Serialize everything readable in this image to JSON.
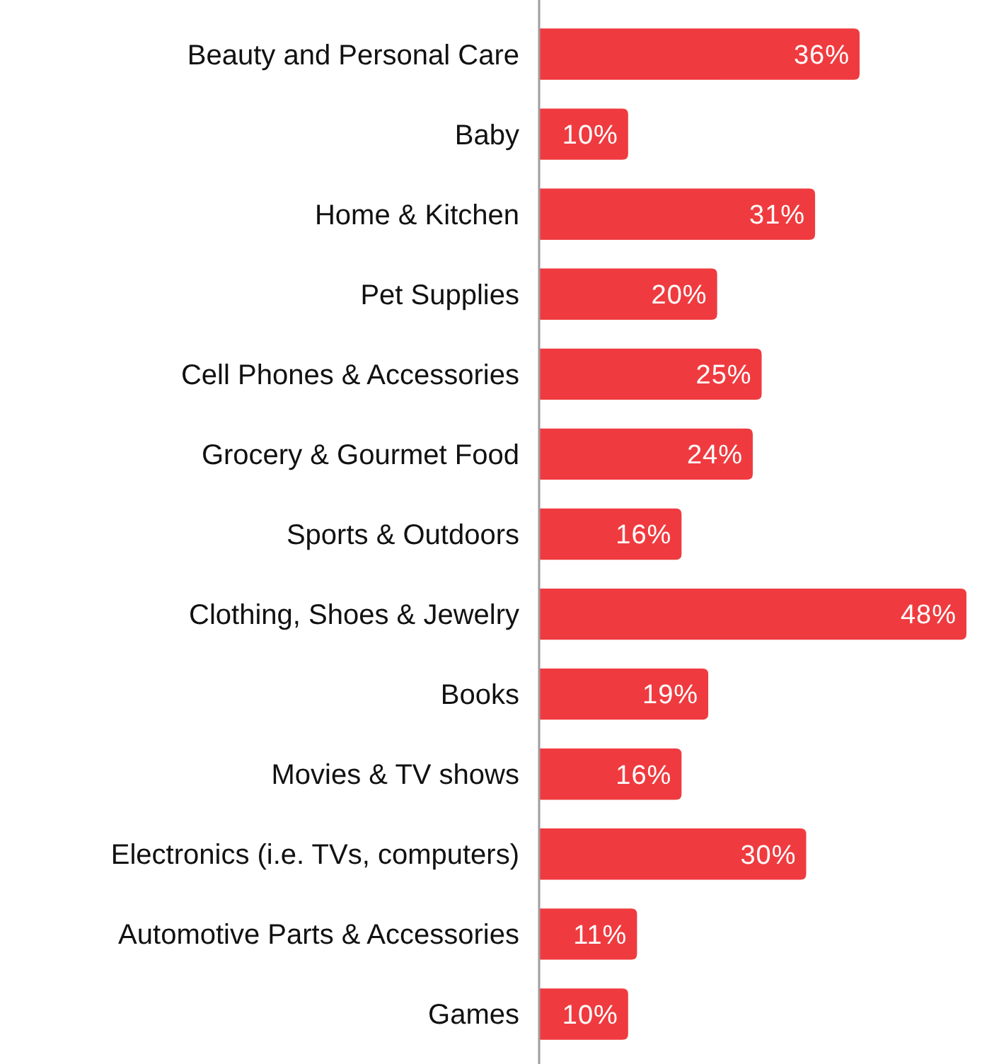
{
  "chart_data": {
    "type": "bar",
    "orientation": "horizontal",
    "color": "#ef3b3f",
    "categories": [
      "Beauty and Personal Care",
      "Baby",
      "Home & Kitchen",
      "Pet Supplies",
      "Cell Phones & Accessories",
      "Grocery & Gourmet Food",
      "Sports & Outdoors",
      "Clothing, Shoes & Jewelry",
      "Books",
      "Movies & TV shows",
      "Electronics (i.e. TVs, computers)",
      "Automotive Parts & Accessories",
      "Games"
    ],
    "values": [
      36,
      10,
      31,
      20,
      25,
      24,
      16,
      48,
      19,
      16,
      30,
      11,
      10
    ],
    "value_labels": [
      "36%",
      "10%",
      "31%",
      "20%",
      "25%",
      "24%",
      "16%",
      "48%",
      "19%",
      "16%",
      "30%",
      "11%",
      "10%"
    ]
  }
}
